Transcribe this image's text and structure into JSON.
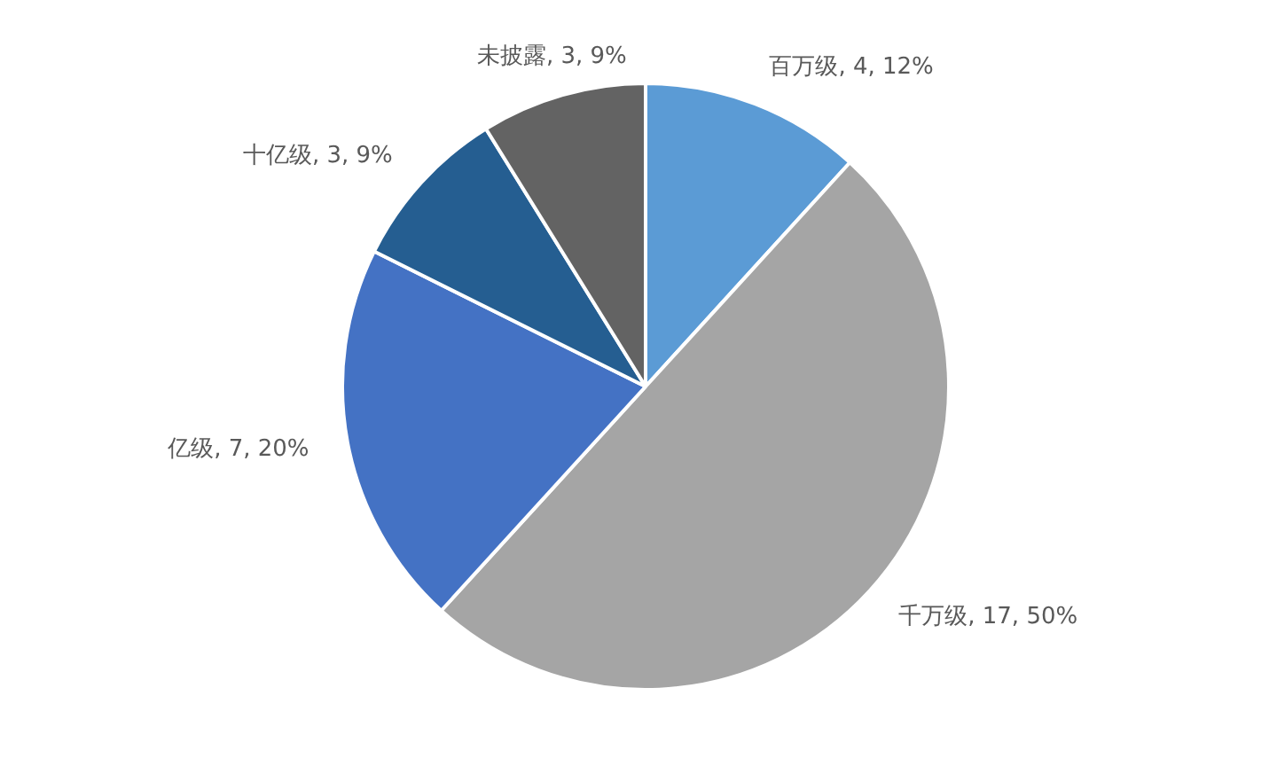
{
  "chart_data": {
    "type": "pie",
    "categories": [
      "百万级",
      "千万级",
      "亿级",
      "十亿级",
      "未披露"
    ],
    "values": [
      4,
      17,
      7,
      3,
      3
    ],
    "colors": [
      "#5b9bd5",
      "#a5a5a5",
      "#4472c4",
      "#255e91",
      "#636363"
    ],
    "value_labels": [
      ", 4, 12%",
      ", 17, 50%",
      ", 7, 20%",
      ", 3, 9%",
      ", 3, 9%"
    ],
    "legend": false
  }
}
